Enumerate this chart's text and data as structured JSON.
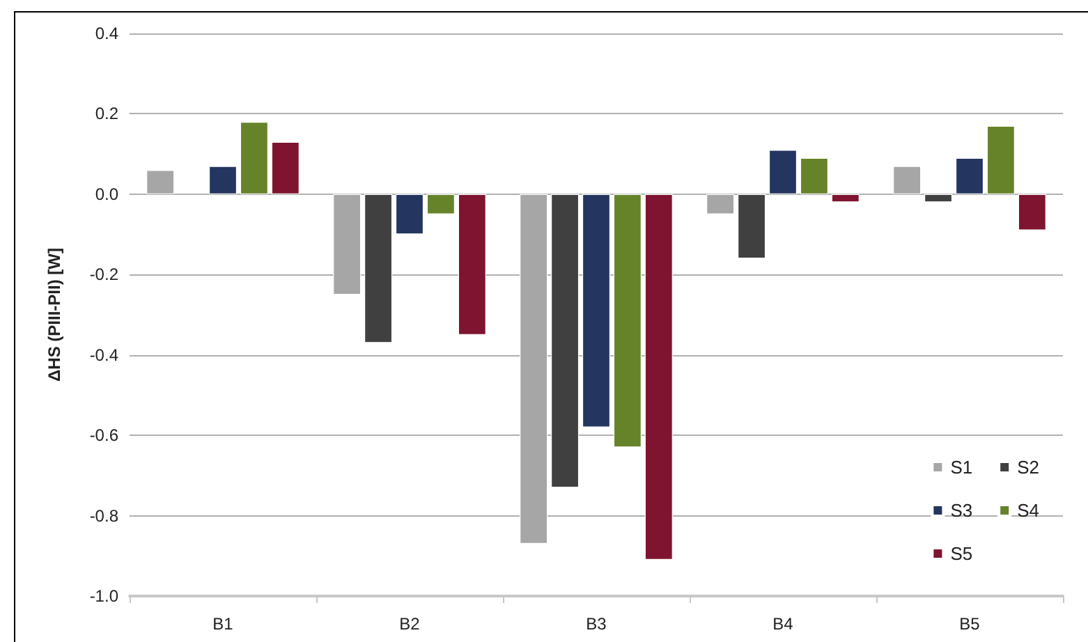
{
  "chart_data": {
    "type": "bar",
    "ylabel": "ΔHS (PIII-PII) [W]",
    "categories": [
      "B1",
      "B2",
      "B3",
      "B4",
      "B5"
    ],
    "series": [
      {
        "name": "S1",
        "color": "#a6a6a6",
        "values": [
          0.06,
          -0.25,
          -0.87,
          -0.05,
          0.07
        ]
      },
      {
        "name": "S2",
        "color": "#404040",
        "values": [
          null,
          -0.37,
          -0.73,
          -0.16,
          -0.02
        ]
      },
      {
        "name": "S3",
        "color": "#243560",
        "values": [
          0.07,
          -0.1,
          -0.58,
          0.11,
          0.09
        ]
      },
      {
        "name": "S4",
        "color": "#66832a",
        "values": [
          0.18,
          -0.05,
          -0.63,
          0.09,
          0.17
        ]
      },
      {
        "name": "S5",
        "color": "#7f1430",
        "values": [
          0.13,
          -0.35,
          -0.91,
          -0.02,
          -0.09
        ]
      }
    ],
    "ylim": [
      -1.0,
      0.4
    ],
    "yticks": [
      {
        "value": -1.0,
        "label": "-1.0"
      },
      {
        "value": -0.8,
        "label": "-0.8"
      },
      {
        "value": -0.6,
        "label": "-0.6"
      },
      {
        "value": -0.4,
        "label": "-0.4"
      },
      {
        "value": -0.2,
        "label": "-0.2"
      },
      {
        "value": 0,
        "label": "0.0"
      },
      {
        "value": 0.2,
        "label": "0.2"
      },
      {
        "value": 0.4,
        "label": "0.4"
      }
    ],
    "grid": "y",
    "legend": "bottom right"
  }
}
